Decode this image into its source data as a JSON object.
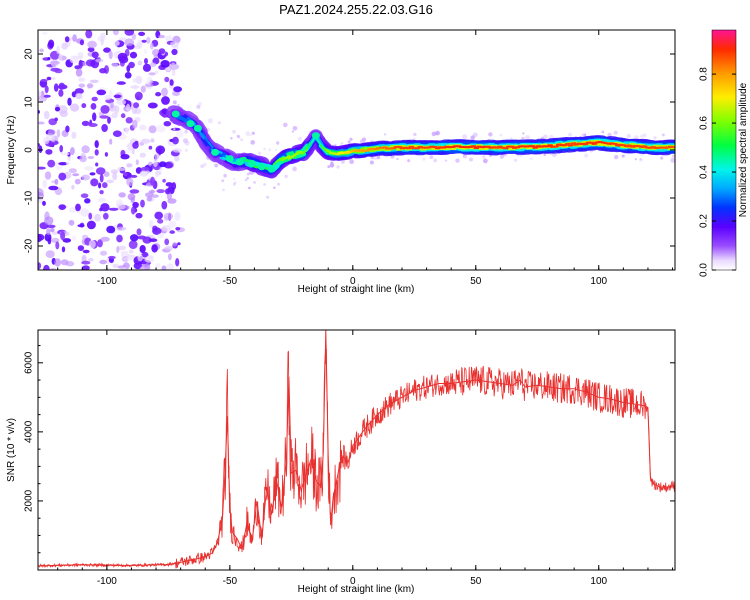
{
  "title": "PAZ1.2024.255.22.03.G16",
  "chart_data": [
    {
      "type": "heatmap",
      "title": "PAZ1.2024.255.22.03.G16",
      "xlabel": "Height of straight line (km)",
      "ylabel": "Frequency (Hz)",
      "xlim": [
        -128,
        131
      ],
      "ylim": [
        -25,
        25
      ],
      "xticks": [
        -100,
        -50,
        0,
        50,
        100
      ],
      "yticks": [
        -20,
        -10,
        0,
        10,
        20
      ],
      "colorbar": {
        "label": "Normalized spectral amplitude",
        "range": [
          0,
          0.98
        ],
        "ticks": [
          0.0,
          0.2,
          0.4,
          0.6,
          0.8
        ]
      },
      "ridge": {
        "name": "frequency ridge",
        "x": [
          -72,
          -68,
          -64,
          -60,
          -56,
          -52,
          -48,
          -44,
          -40,
          -36,
          -33,
          -30,
          -27,
          -24,
          -20,
          -17,
          -15,
          -13,
          -10,
          -6,
          -2,
          0,
          5,
          10,
          20,
          30,
          40,
          50,
          60,
          70,
          80,
          90,
          100,
          110,
          120,
          131
        ],
        "y": [
          7.5,
          6.5,
          5.0,
          2.0,
          -0.5,
          -1.5,
          -2.5,
          -2.2,
          -3.0,
          -3.5,
          -4.0,
          -2.5,
          -1.5,
          -1.0,
          -0.5,
          1.5,
          3.0,
          1.0,
          -0.5,
          -0.8,
          -0.5,
          -0.2,
          0.0,
          0.3,
          0.5,
          0.5,
          0.6,
          0.6,
          0.5,
          0.6,
          0.8,
          1.2,
          1.5,
          1.0,
          0.6,
          0.5
        ],
        "amplitude": [
          0.3,
          0.3,
          0.35,
          0.3,
          0.35,
          0.4,
          0.45,
          0.5,
          0.55,
          0.55,
          0.55,
          0.6,
          0.65,
          0.65,
          0.6,
          0.45,
          0.4,
          0.55,
          0.65,
          0.7,
          0.75,
          0.8,
          0.82,
          0.85,
          0.9,
          0.9,
          0.92,
          0.92,
          0.9,
          0.92,
          0.92,
          0.9,
          0.92,
          0.9,
          0.9,
          0.88
        ]
      },
      "noise_region": {
        "x": [
          -128,
          -73
        ],
        "y": [
          -25,
          25
        ],
        "amplitude": [
          0.05,
          0.2
        ]
      }
    },
    {
      "type": "line",
      "xlabel": "Height of straight line (km)",
      "ylabel": "SNR (10 * v/v)",
      "xlim": [
        -128,
        131
      ],
      "ylim": [
        0,
        6950
      ],
      "xticks": [
        -100,
        -50,
        0,
        50,
        100
      ],
      "yticks": [
        2000,
        4000,
        6000
      ],
      "color": "#e8312f",
      "series": [
        {
          "x": [
            -128,
            -110,
            -90,
            -75,
            -70,
            -65,
            -60,
            -57,
            -55,
            -53,
            -52,
            -51,
            -50,
            -49,
            -47,
            -45,
            -43,
            -41,
            -39,
            -37,
            -35,
            -33,
            -31,
            -29,
            -27,
            -26,
            -25,
            -23,
            -21,
            -19,
            -17,
            -15,
            -13,
            -12,
            -11,
            -10,
            -9,
            -8,
            -6,
            -4,
            -2,
            0,
            5,
            10,
            15,
            20,
            25,
            30,
            35,
            40,
            45,
            50,
            55,
            60,
            65,
            68,
            70,
            75,
            80,
            85,
            90,
            95,
            100,
            105,
            110,
            115,
            119,
            120,
            121,
            122,
            125,
            128,
            131
          ],
          "y": [
            120,
            150,
            130,
            160,
            220,
            300,
            380,
            500,
            800,
            1500,
            2800,
            4450,
            1800,
            1100,
            900,
            600,
            1400,
            800,
            2000,
            900,
            2400,
            1600,
            2600,
            1800,
            3200,
            5600,
            2800,
            2900,
            2300,
            2800,
            3200,
            2600,
            2400,
            3400,
            6950,
            3300,
            1300,
            2100,
            2800,
            3300,
            3100,
            3600,
            4100,
            4500,
            4800,
            5000,
            5200,
            5300,
            5400,
            5400,
            5450,
            5500,
            5450,
            5400,
            5350,
            5500,
            5300,
            5350,
            5300,
            5250,
            5250,
            5150,
            5000,
            4950,
            4850,
            4800,
            4750,
            4700,
            2700,
            2500,
            2400,
            2400,
            2450
          ]
        }
      ]
    }
  ]
}
